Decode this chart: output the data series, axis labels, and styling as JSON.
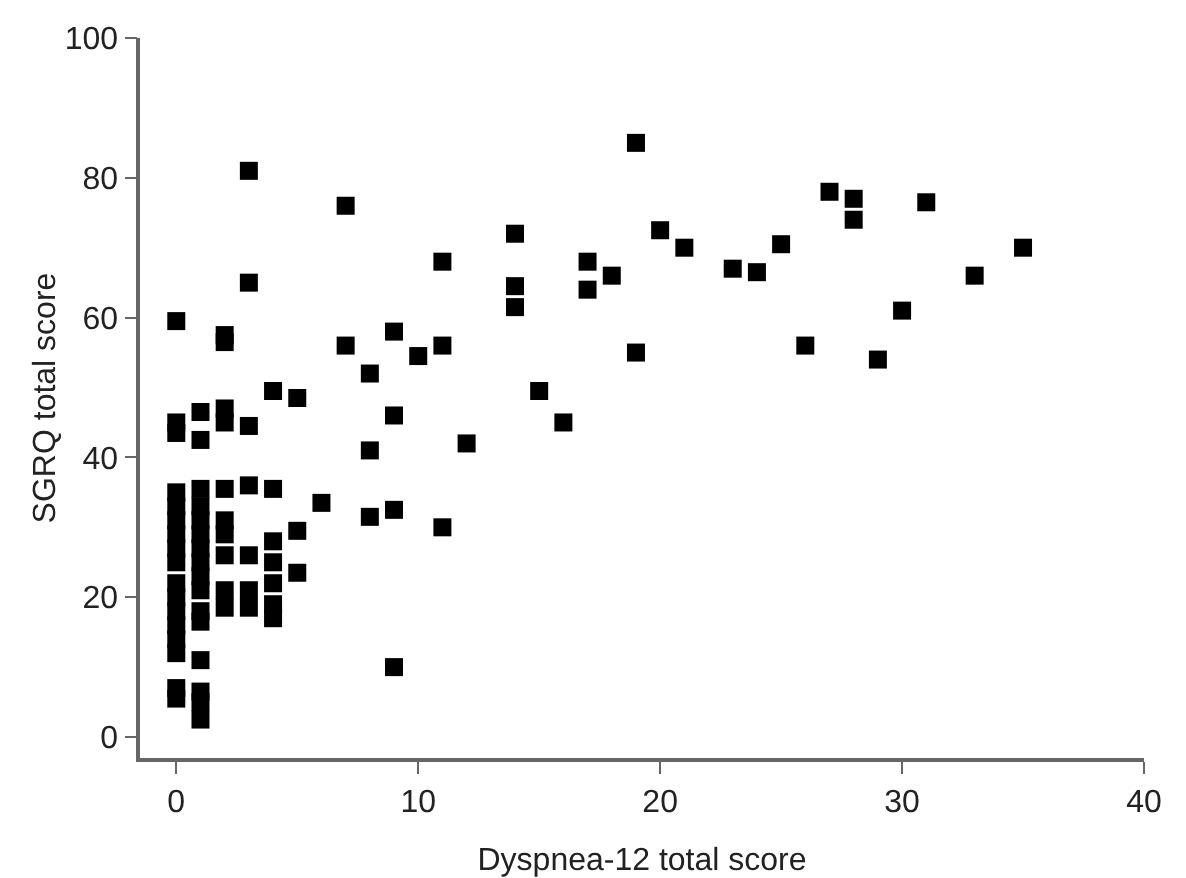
{
  "chart_data": {
    "type": "scatter",
    "xlabel": "Dyspnea-12 total score",
    "ylabel": "SGRQ total score",
    "marker": "square",
    "grid": false,
    "xlim": [
      -1.5,
      40
    ],
    "xticks": [
      0,
      10,
      20,
      30,
      40
    ],
    "ylim": [
      -3,
      100
    ],
    "yticks": [
      0,
      20,
      40,
      60,
      80,
      100
    ],
    "series": [
      {
        "color": "#000000",
        "x": [
          0,
          0,
          0,
          0,
          0,
          0,
          0,
          0,
          0,
          0,
          0,
          0,
          0,
          0,
          0,
          0,
          0,
          1,
          1,
          1,
          1,
          1,
          1,
          1,
          1,
          1,
          1,
          1,
          1,
          1,
          1,
          1,
          1,
          2,
          2,
          2,
          2,
          2,
          2,
          2,
          2,
          2,
          2,
          3,
          3,
          3,
          3,
          3,
          3,
          3,
          4,
          4,
          4,
          4,
          4,
          4,
          4,
          5,
          5,
          5,
          6,
          7,
          7,
          8,
          8,
          8,
          9,
          9,
          9,
          9,
          10,
          11,
          11,
          11,
          12,
          14,
          14,
          14,
          15,
          16,
          17,
          17,
          18,
          19,
          19,
          20,
          21,
          23,
          24,
          25,
          26,
          27,
          28,
          28,
          29,
          30,
          31,
          33,
          35
        ],
        "values": [
          59.5,
          45,
          43.5,
          35,
          33,
          31,
          29,
          27,
          25,
          22,
          20,
          18,
          16,
          14,
          12,
          7,
          5.5,
          46.5,
          42.5,
          35.5,
          33,
          31,
          29,
          27,
          25,
          23,
          21,
          18,
          16.5,
          11,
          6.5,
          5,
          2.5,
          57.5,
          56.5,
          47,
          45,
          35.5,
          31,
          29,
          26,
          21,
          18.5,
          81,
          65,
          44.5,
          36,
          26,
          21,
          18.5,
          49.5,
          35.5,
          28,
          25,
          22,
          19,
          17,
          48.5,
          29.5,
          23.5,
          33.5,
          76,
          56,
          52,
          41,
          31.5,
          58,
          46,
          32.5,
          10,
          54.5,
          68,
          56,
          30,
          42,
          72,
          64.5,
          61.5,
          49.5,
          45,
          68,
          64,
          66,
          85,
          55,
          72.5,
          70,
          67,
          66.5,
          70.5,
          56,
          78,
          77,
          74,
          54,
          61,
          76.5,
          66,
          70
        ]
      }
    ]
  }
}
